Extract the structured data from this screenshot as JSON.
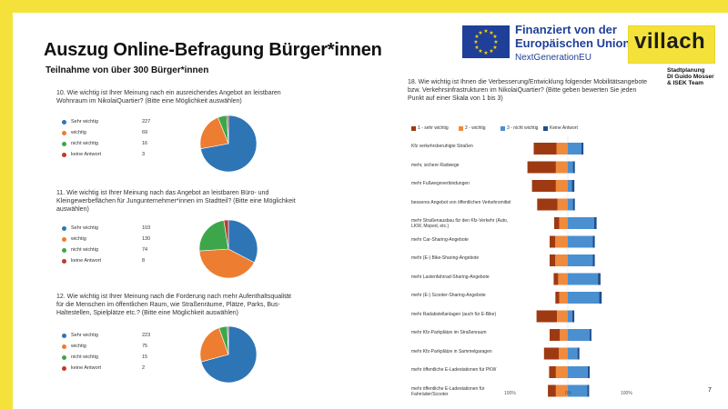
{
  "header": {
    "title": "Auszug Online-Befragung Bürger*innen",
    "subtitle": "Teilnahme von über 300 Bürger*innen",
    "eu_line1": "Finanziert von der",
    "eu_line2": "Europäischen Union",
    "eu_line3": "NextGenerationEU",
    "city_logo": "villach",
    "credit_lines": [
      "Stadtplanung",
      "DI Guido Mosser",
      "& ISEK Team"
    ],
    "page_number": "7"
  },
  "colors": {
    "blue": "#2e75b6",
    "orange": "#ed7d31",
    "green": "#3ea64a",
    "red": "#c0392b",
    "dark_red": "#9e3a12",
    "light_orange": "#f08a3c",
    "light_blue": "#4a90d0",
    "navy": "#1f4e8c",
    "eu_blue": "#1f3f98",
    "villach_yellow": "#f4e23a"
  },
  "chart_data": [
    {
      "type": "pie",
      "question": "10.  Wie wichtig ist Ihrer Meinung nach ein ausreichendes Angebot an leistbaren Wohnraum im NikolaiQuartier? (Bitte eine Möglichkeit auswählen)",
      "categories": [
        "Sehr wichtig",
        "wichtig",
        "nicht wichtig",
        "keine Antwort"
      ],
      "values": [
        227,
        69,
        16,
        3
      ]
    },
    {
      "type": "pie",
      "question": "11.  Wie wichtig ist Ihrer Meinung nach das Angebot an leistbaren Büro- und Kleingewerbeflächen für Jungunternehmer*innen im Stadtteil? (Bitte eine Möglichkeit auswählen)",
      "categories": [
        "Sehr wichtig",
        "wichtig",
        "nicht wichtig",
        "keine Antwort"
      ],
      "values": [
        103,
        130,
        74,
        8
      ]
    },
    {
      "type": "pie",
      "question": "12.  Wie wichtig ist Ihrer Meinung nach die Forderung nach mehr Aufenthaltsqualität für die Menschen im öffentlichen Raum, wie Straßenräume, Plätze, Parks, Bus-Haltestellen, Spielplätze etc.? (Bitte eine Möglichkeit auswählen)",
      "categories": [
        "Sehr wichtig",
        "wichtig",
        "nicht wichtig",
        "keine Antwort"
      ],
      "values": [
        223,
        75,
        15,
        2
      ]
    },
    {
      "type": "bar",
      "subtype": "diverging-stacked",
      "question": "18.  Wie wichtig ist Ihnen die Verbesserung/Entwicklung folgender Mobilitätsangebote bzw. Verkehrsinfrastrukturen im NikolaiQuartier? (Bitte geben bewerten Sie jeden Punkt auf einer Skala von 1 bis 3)",
      "legend": [
        "1 - sehr wichtig",
        "2 - wichtig",
        "3 - nicht wichtig",
        "Keine Antwort"
      ],
      "xticks": [
        "100%",
        "0%",
        "100%"
      ],
      "categories": [
        "Kfz verkehrsberuhigte Straßen",
        "mehr, sichere Radwege",
        "mehr Fußwegeverbindungen",
        "besseres Angebot von öffentlichen Verkehrsmittel",
        "mehr Straßenausbau für den Kfz-Verkehr (Auto, LKW, Moped, etc.)",
        "mehr Car-Sharing-Angebote",
        "mehr (E-) Bike-Sharing-Angebote",
        "mehr Lastenfahrrad-Sharing-Angebote",
        "mehr (E-) Scooter-Sharing-Angebote",
        "mehr Radabstellanlagen (auch für E-Bike)",
        "mehr Kfz-Parkplätze im Straßenraum",
        "mehr Kfz-Parkplätze in Sammelgaragen",
        "mehr öffentliche E-Ladestationen für PKW",
        "mehr öffentliche E-Ladestationen für Fahrräder/Scooter"
      ],
      "series": [
        {
          "name": "1 - sehr wichtig",
          "values": [
            40,
            50,
            42,
            36,
            9,
            10,
            10,
            8,
            7,
            36,
            18,
            26,
            12,
            14
          ]
        },
        {
          "name": "2 - wichtig",
          "values": [
            20,
            21,
            21,
            18,
            15,
            22,
            22,
            17,
            15,
            19,
            14,
            16,
            21,
            21
          ]
        },
        {
          "name": "3 - nicht wichtig",
          "values": [
            24,
            9,
            7,
            9,
            46,
            44,
            44,
            53,
            55,
            8,
            38,
            17,
            35,
            34
          ]
        },
        {
          "name": "Keine Antwort",
          "values": [
            1,
            1,
            2,
            1,
            2,
            1,
            1,
            2,
            2,
            1,
            1,
            1,
            1,
            1
          ]
        }
      ]
    }
  ]
}
